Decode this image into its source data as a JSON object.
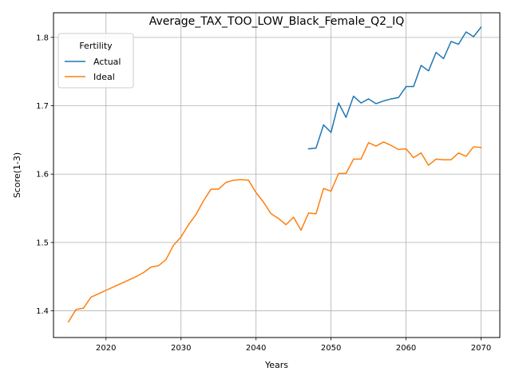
{
  "chart_data": {
    "type": "line",
    "title": "Average_TAX_TOO_LOW_Black_Female_Q2_IQ",
    "xlabel": "Years",
    "ylabel": "Score(1-3)",
    "xlim": [
      2013,
      2072.5
    ],
    "ylim": [
      1.361,
      1.836
    ],
    "xticks": [
      2020,
      2030,
      2040,
      2050,
      2060,
      2070
    ],
    "yticks": [
      1.4,
      1.5,
      1.6,
      1.7,
      1.8
    ],
    "grid": true,
    "legend": {
      "title": "Fertility",
      "placement": "top-left"
    },
    "series": [
      {
        "name": "Actual",
        "color": "#1f77b4",
        "x": [
          2047,
          2048,
          2049,
          2050,
          2051,
          2052,
          2053,
          2054,
          2055,
          2056,
          2057,
          2058,
          2059,
          2060,
          2061,
          2062,
          2063,
          2064,
          2065,
          2066,
          2067,
          2068,
          2069,
          2070
        ],
        "y": [
          1.637,
          1.638,
          1.672,
          1.661,
          1.704,
          1.683,
          1.714,
          1.704,
          1.71,
          1.703,
          1.707,
          1.71,
          1.712,
          1.728,
          1.728,
          1.759,
          1.751,
          1.778,
          1.769,
          1.794,
          1.79,
          1.808,
          1.801,
          1.815
        ]
      },
      {
        "name": "Ideal",
        "color": "#ff7f0e",
        "x": [
          2015,
          2016,
          2017,
          2018,
          2019,
          2020,
          2021,
          2022,
          2023,
          2024,
          2025,
          2026,
          2027,
          2028,
          2029,
          2030,
          2031,
          2032,
          2033,
          2034,
          2035,
          2036,
          2037,
          2038,
          2039,
          2040,
          2041,
          2042,
          2043,
          2044,
          2045,
          2046,
          2047,
          2048,
          2049,
          2050,
          2051,
          2052,
          2053,
          2054,
          2055,
          2056,
          2057,
          2058,
          2059,
          2060,
          2061,
          2062,
          2063,
          2064,
          2065,
          2066,
          2067,
          2068,
          2069,
          2070
        ],
        "y": [
          1.384,
          1.402,
          1.404,
          1.42,
          1.425,
          1.43,
          1.435,
          1.44,
          1.445,
          1.45,
          1.456,
          1.464,
          1.466,
          1.475,
          1.496,
          1.508,
          1.526,
          1.541,
          1.561,
          1.578,
          1.578,
          1.588,
          1.591,
          1.592,
          1.591,
          1.573,
          1.559,
          1.542,
          1.535,
          1.526,
          1.537,
          1.518,
          1.543,
          1.542,
          1.579,
          1.575,
          1.601,
          1.601,
          1.622,
          1.622,
          1.646,
          1.641,
          1.647,
          1.642,
          1.636,
          1.637,
          1.624,
          1.631,
          1.613,
          1.622,
          1.621,
          1.621,
          1.631,
          1.626,
          1.64,
          1.639
        ]
      }
    ]
  }
}
